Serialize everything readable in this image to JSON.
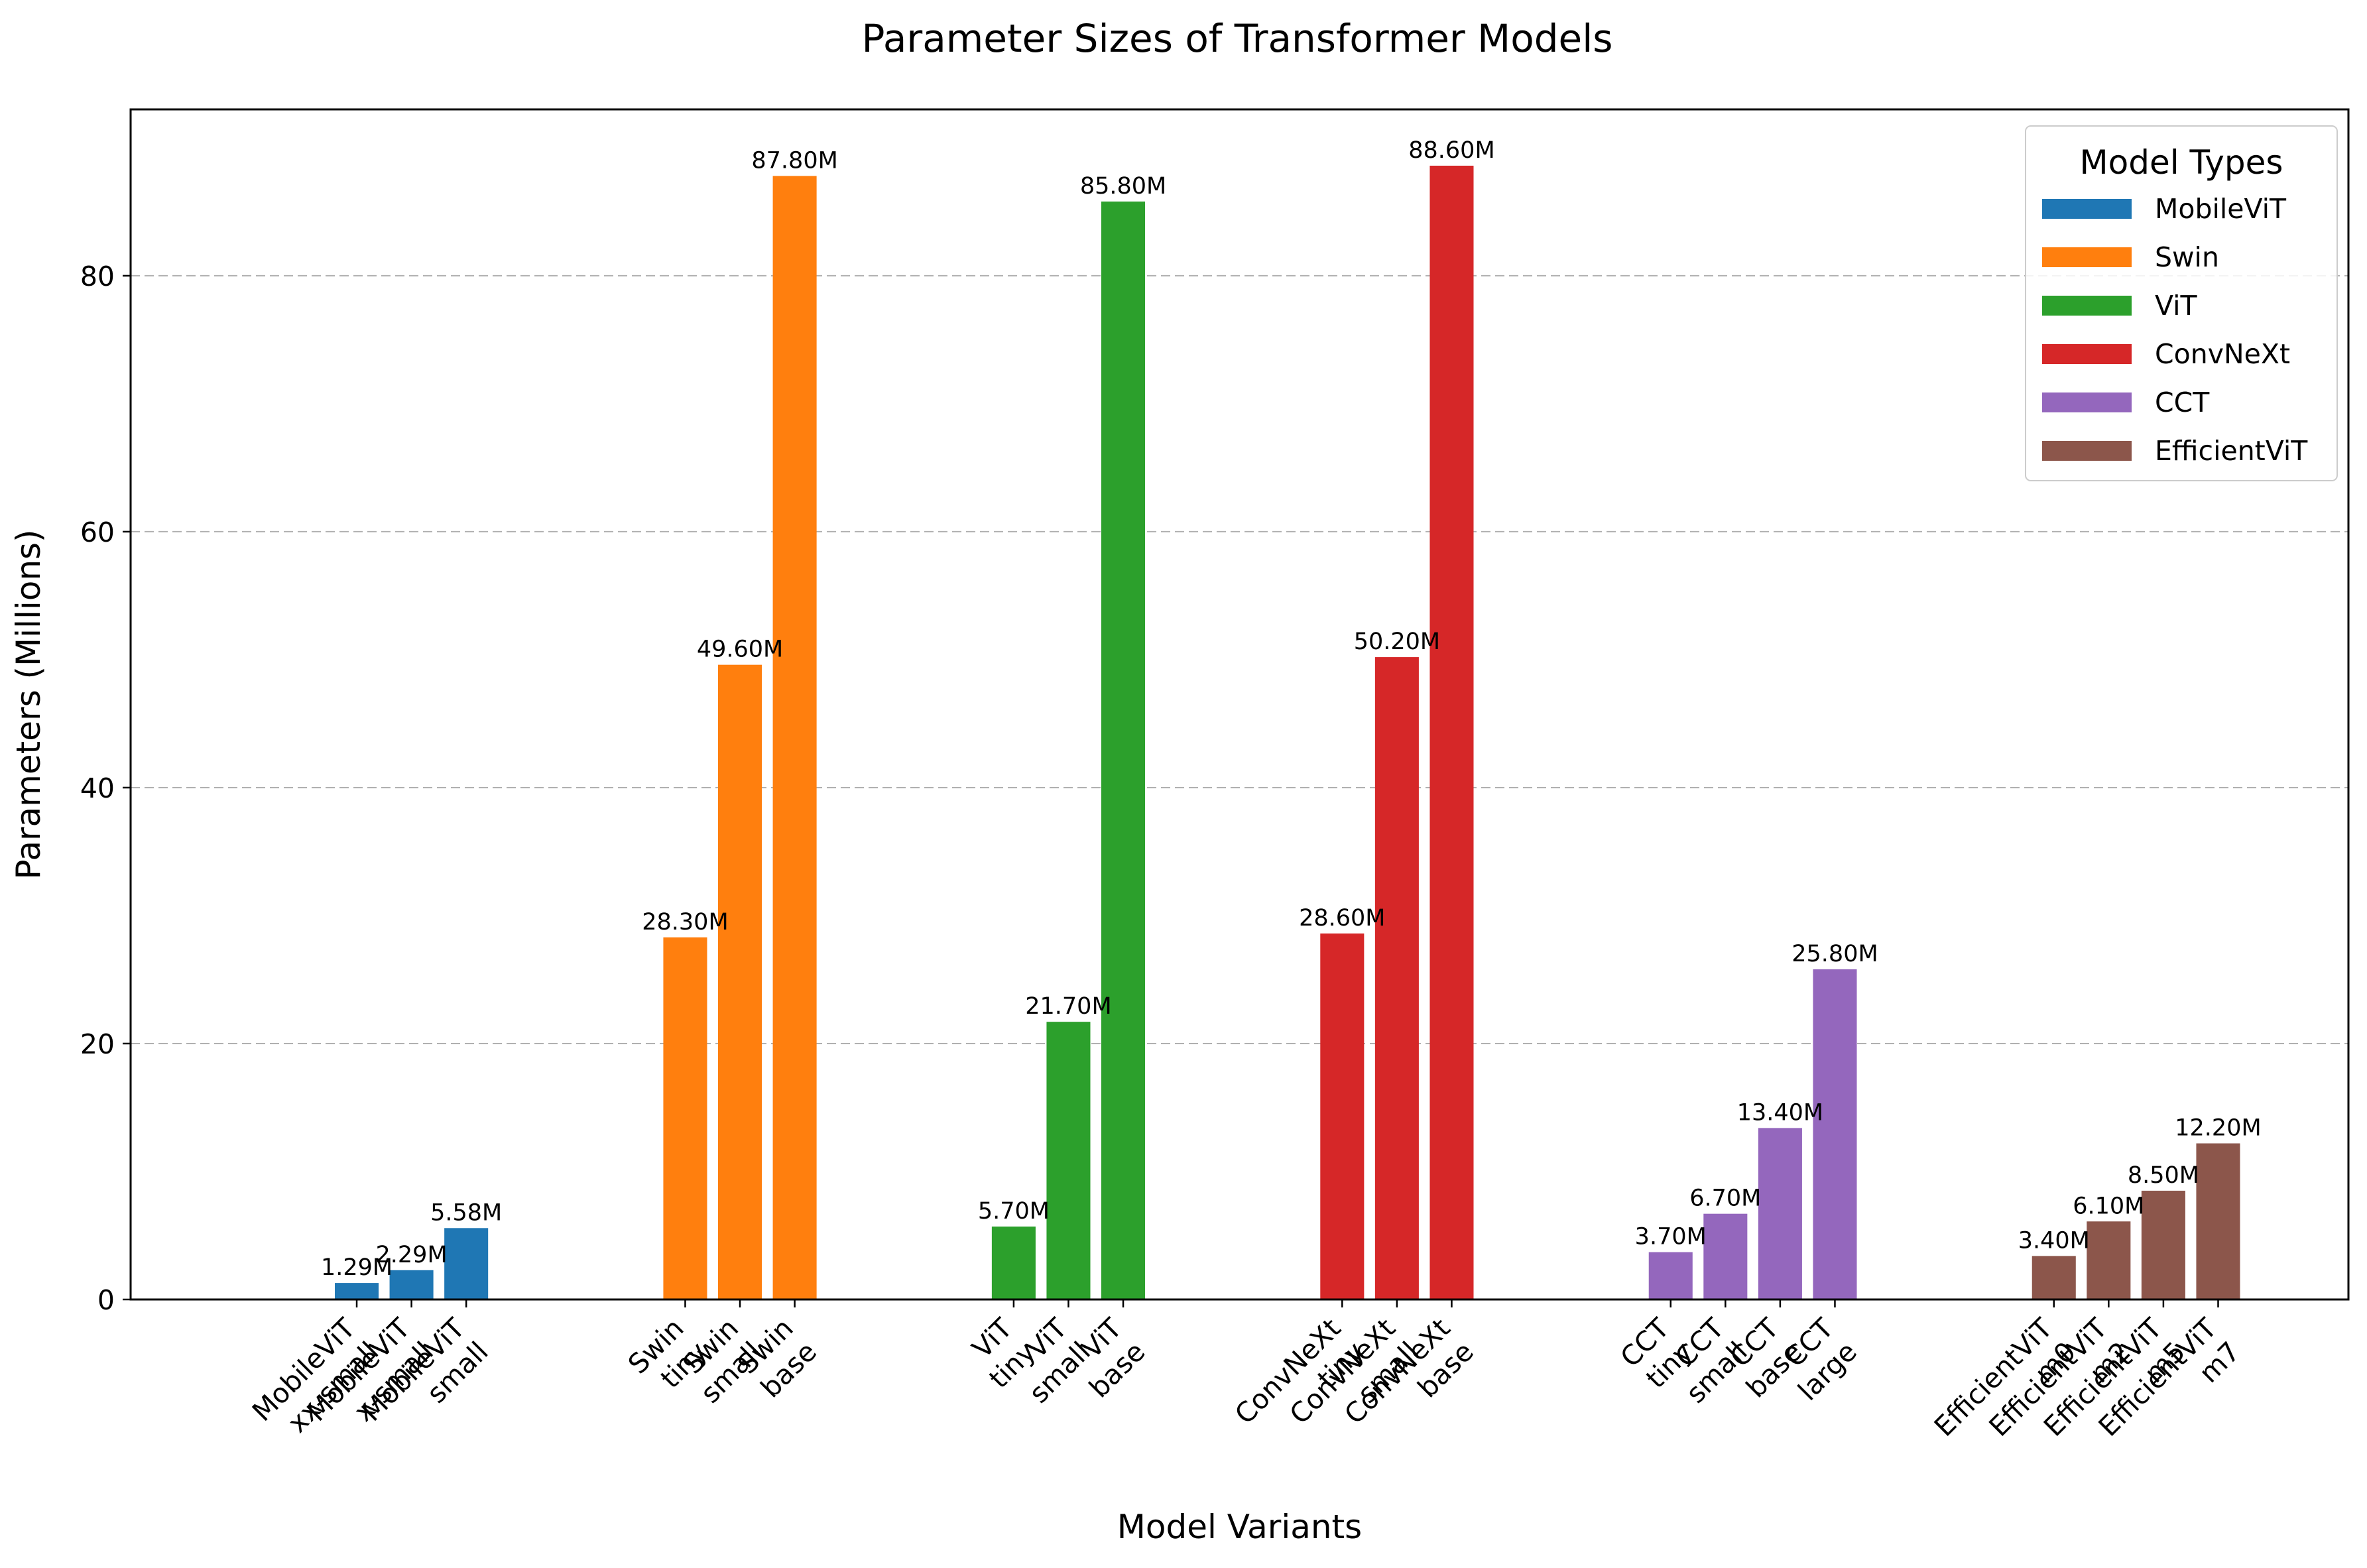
{
  "chart_data": {
    "type": "bar",
    "title": "Parameter Sizes of Transformer Models",
    "xlabel": "Model Variants",
    "ylabel": "Parameters (Millions)",
    "ylim": [
      0,
      93
    ],
    "yticks": [
      0,
      20,
      40,
      60,
      80
    ],
    "grid": "y-dashed",
    "legend_title": "Model Types",
    "legend_position": "top-right",
    "groups": [
      {
        "name": "MobileViT",
        "color": "#1f77b4",
        "labels": [
          [
            "MobileViT",
            "xx-small"
          ],
          [
            "MobileViT",
            "x-small"
          ],
          [
            "MobileViT",
            "small"
          ]
        ],
        "values": [
          1.29,
          2.29,
          5.58
        ],
        "value_labels": [
          "1.29M",
          "2.29M",
          "5.58M"
        ]
      },
      {
        "name": "Swin",
        "color": "#ff7f0e",
        "labels": [
          [
            "Swin",
            "tiny"
          ],
          [
            "Swin",
            "small"
          ],
          [
            "Swin",
            "base"
          ]
        ],
        "values": [
          28.3,
          49.6,
          87.8
        ],
        "value_labels": [
          "28.30M",
          "49.60M",
          "87.80M"
        ]
      },
      {
        "name": "ViT",
        "color": "#2ca02c",
        "labels": [
          [
            "ViT",
            "tiny"
          ],
          [
            "ViT",
            "small"
          ],
          [
            "ViT",
            "base"
          ]
        ],
        "values": [
          5.7,
          21.7,
          85.8
        ],
        "value_labels": [
          "5.70M",
          "21.70M",
          "85.80M"
        ]
      },
      {
        "name": "ConvNeXt",
        "color": "#d62728",
        "labels": [
          [
            "ConvNeXt",
            "tiny"
          ],
          [
            "ConvNeXt",
            "small"
          ],
          [
            "ConvNeXt",
            "base"
          ]
        ],
        "values": [
          28.6,
          50.2,
          88.6
        ],
        "value_labels": [
          "28.60M",
          "50.20M",
          "88.60M"
        ]
      },
      {
        "name": "CCT",
        "color": "#9467bd",
        "labels": [
          [
            "CCT",
            "tiny"
          ],
          [
            "CCT",
            "small"
          ],
          [
            "CCT",
            "base"
          ],
          [
            "CCT",
            "large"
          ]
        ],
        "values": [
          3.7,
          6.7,
          13.4,
          25.8
        ],
        "value_labels": [
          "3.70M",
          "6.70M",
          "13.40M",
          "25.80M"
        ]
      },
      {
        "name": "EfficientViT",
        "color": "#8c564b",
        "labels": [
          [
            "EfficientViT",
            "m0"
          ],
          [
            "EfficientViT",
            "m2"
          ],
          [
            "EfficientViT",
            "m5"
          ],
          [
            "EfficientViT",
            "m7"
          ]
        ],
        "values": [
          3.4,
          6.1,
          8.5,
          12.2
        ],
        "value_labels": [
          "3.40M",
          "6.10M",
          "8.50M",
          "12.20M"
        ]
      }
    ]
  }
}
